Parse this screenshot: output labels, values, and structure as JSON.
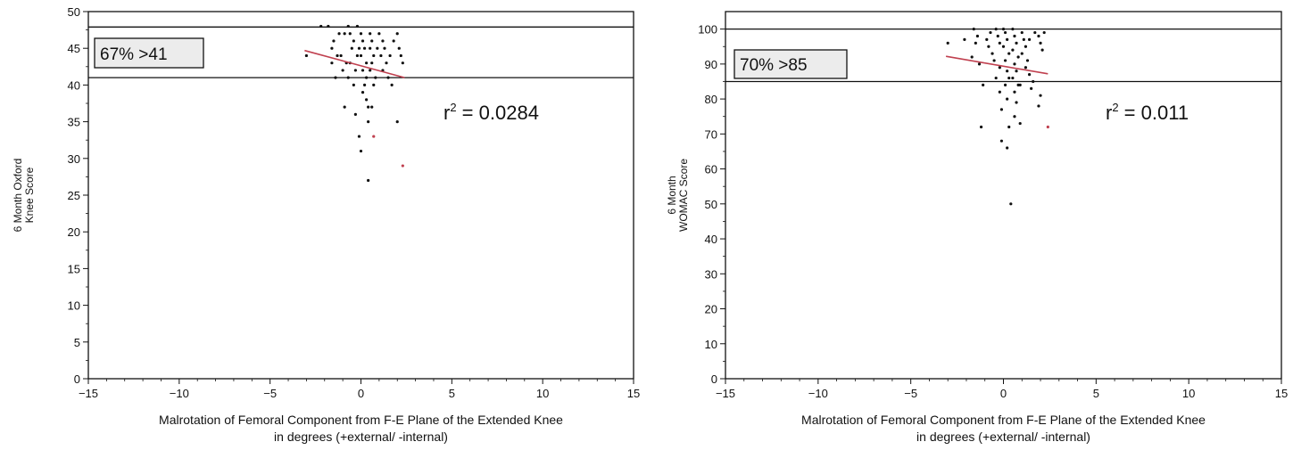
{
  "chart_data": [
    {
      "type": "scatter",
      "title": "",
      "ylabel_lines": [
        "6 Month Oxford",
        "Knee Score"
      ],
      "xlabel_lines": [
        "Malrotation of Femoral Component from F-E Plane of the Extended Knee",
        "in degrees (+external/ -internal)"
      ],
      "xlim": [
        -15,
        15
      ],
      "ylim": [
        0,
        50
      ],
      "x_ticks": [
        -15,
        -10,
        -5,
        0,
        5,
        10,
        15
      ],
      "x_tick_labels": [
        "−15",
        "−10",
        "−5",
        "0",
        "5",
        "10",
        "15"
      ],
      "y_ticks": [
        0,
        5,
        10,
        15,
        20,
        25,
        30,
        35,
        40,
        45,
        50
      ],
      "y_tick_labels": [
        "0",
        "5",
        "10",
        "15",
        "20",
        "25",
        "30",
        "35",
        "40",
        "45",
        "50"
      ],
      "grid": false,
      "reference_lines": [
        41,
        47.9
      ],
      "box_annotation": "67% >41",
      "r2_prefix": "r",
      "r2_exp": "2",
      "r2_value": " = 0.0284",
      "trend_line": {
        "x": [
          -3.1,
          2.4
        ],
        "y": [
          44.7,
          41.0
        ],
        "color": "#c0404f"
      },
      "point_color": "#111111",
      "highlight_color": "#c0404f",
      "points": [
        [
          -3,
          44
        ],
        [
          -2.2,
          48
        ],
        [
          -1.8,
          48
        ],
        [
          -1.5,
          46
        ],
        [
          -1.2,
          47
        ],
        [
          -1.6,
          45
        ],
        [
          -1.3,
          44
        ],
        [
          -1.0,
          42
        ],
        [
          -1.4,
          41
        ],
        [
          -1.6,
          43
        ],
        [
          -0.9,
          37
        ],
        [
          -0.7,
          48
        ],
        [
          -0.6,
          47
        ],
        [
          -0.4,
          46
        ],
        [
          -0.5,
          45
        ],
        [
          -0.2,
          44
        ],
        [
          -0.6,
          43
        ],
        [
          -0.3,
          42
        ],
        [
          -0.7,
          41
        ],
        [
          -0.4,
          40
        ],
        [
          -0.2,
          48
        ],
        [
          0.0,
          47
        ],
        [
          0.1,
          46
        ],
        [
          -0.1,
          45
        ],
        [
          0.2,
          45
        ],
        [
          0.0,
          44
        ],
        [
          0.3,
          43
        ],
        [
          0.1,
          42
        ],
        [
          0.3,
          41
        ],
        [
          0.2,
          40
        ],
        [
          0.1,
          39
        ],
        [
          0.3,
          38
        ],
        [
          0.4,
          37
        ],
        [
          0.5,
          47
        ],
        [
          0.6,
          46
        ],
        [
          0.5,
          45
        ],
        [
          0.7,
          44
        ],
        [
          0.6,
          43
        ],
        [
          0.5,
          42
        ],
        [
          0.8,
          41
        ],
        [
          0.7,
          40
        ],
        [
          0.6,
          37
        ],
        [
          1.0,
          47
        ],
        [
          1.2,
          46
        ],
        [
          1.3,
          45
        ],
        [
          1.1,
          44
        ],
        [
          1.4,
          43
        ],
        [
          1.2,
          42
        ],
        [
          1.5,
          41
        ],
        [
          1.7,
          40
        ],
        [
          1.8,
          46
        ],
        [
          2.0,
          47
        ],
        [
          2.1,
          45
        ],
        [
          2.2,
          44
        ],
        [
          2.3,
          43
        ],
        [
          -0.3,
          36
        ],
        [
          0.4,
          35
        ],
        [
          -0.1,
          33
        ],
        [
          0.0,
          31
        ],
        [
          0.4,
          27
        ],
        [
          2.0,
          35
        ],
        [
          -0.8,
          43
        ],
        [
          1.6,
          44
        ],
        [
          0.9,
          45
        ],
        [
          -1.1,
          44
        ],
        [
          -0.9,
          47
        ]
      ],
      "highlight_points": [
        [
          0.7,
          33
        ],
        [
          2.3,
          29
        ]
      ]
    },
    {
      "type": "scatter",
      "title": "",
      "ylabel_lines": [
        "6 Month",
        "WOMAC Score"
      ],
      "xlabel_lines": [
        "Malrotation of Femoral Component from F-E Plane of the Extended Knee",
        "in degrees (+external/ -internal)"
      ],
      "xlim": [
        -15,
        15
      ],
      "ylim": [
        0,
        105
      ],
      "x_ticks": [
        -15,
        -10,
        -5,
        0,
        5,
        10,
        15
      ],
      "x_tick_labels": [
        "−15",
        "−10",
        "−5",
        "0",
        "5",
        "10",
        "15"
      ],
      "y_ticks": [
        0,
        10,
        20,
        30,
        40,
        50,
        60,
        70,
        80,
        90,
        100
      ],
      "y_tick_labels": [
        "0",
        "10",
        "20",
        "30",
        "40",
        "50",
        "60",
        "70",
        "80",
        "90",
        "100"
      ],
      "grid": false,
      "reference_lines": [
        85,
        100
      ],
      "box_annotation": "70% >85",
      "r2_prefix": "r",
      "r2_exp": "2",
      "r2_value": " = 0.011",
      "trend_line": {
        "x": [
          -3.1,
          2.4
        ],
        "y": [
          92.2,
          87.2
        ],
        "color": "#c0404f"
      },
      "point_color": "#111111",
      "highlight_color": "#c0404f",
      "points": [
        [
          -3,
          96
        ],
        [
          -2.1,
          97
        ],
        [
          -1.6,
          100
        ],
        [
          -1.4,
          98
        ],
        [
          -1.7,
          92
        ],
        [
          -1.3,
          90
        ],
        [
          -1.1,
          84
        ],
        [
          -1.2,
          72
        ],
        [
          -0.9,
          97
        ],
        [
          -0.8,
          95
        ],
        [
          -0.6,
          93
        ],
        [
          -0.4,
          100
        ],
        [
          -0.3,
          98
        ],
        [
          -0.2,
          96
        ],
        [
          -0.5,
          91
        ],
        [
          -0.2,
          89
        ],
        [
          -0.4,
          86
        ],
        [
          -0.2,
          82
        ],
        [
          -0.1,
          77
        ],
        [
          0.0,
          100
        ],
        [
          0.1,
          99
        ],
        [
          0.2,
          97
        ],
        [
          0.0,
          95
        ],
        [
          0.3,
          93
        ],
        [
          0.1,
          91
        ],
        [
          0.2,
          88
        ],
        [
          0.3,
          86
        ],
        [
          0.1,
          84
        ],
        [
          0.2,
          80
        ],
        [
          0.3,
          72
        ],
        [
          -0.1,
          68
        ],
        [
          0.2,
          66
        ],
        [
          0.5,
          100
        ],
        [
          0.6,
          98
        ],
        [
          0.7,
          96
        ],
        [
          0.5,
          94
        ],
        [
          0.8,
          92
        ],
        [
          0.6,
          90
        ],
        [
          0.7,
          88
        ],
        [
          0.5,
          86
        ],
        [
          0.8,
          84
        ],
        [
          0.6,
          82
        ],
        [
          0.7,
          79
        ],
        [
          0.6,
          75
        ],
        [
          1.0,
          99
        ],
        [
          1.1,
          97
        ],
        [
          1.2,
          95
        ],
        [
          1.0,
          93
        ],
        [
          1.3,
          91
        ],
        [
          1.2,
          89
        ],
        [
          1.4,
          87
        ],
        [
          1.6,
          85
        ],
        [
          1.5,
          83
        ],
        [
          1.7,
          99
        ],
        [
          1.9,
          98
        ],
        [
          2.0,
          96
        ],
        [
          2.1,
          94
        ],
        [
          2.2,
          99
        ],
        [
          2.0,
          81
        ],
        [
          1.9,
          78
        ],
        [
          0.9,
          73
        ],
        [
          0.4,
          50
        ],
        [
          -1.5,
          96
        ],
        [
          0.9,
          84
        ],
        [
          1.4,
          97
        ],
        [
          -0.7,
          99
        ]
      ],
      "highlight_points": [
        [
          2.4,
          72
        ]
      ]
    }
  ]
}
